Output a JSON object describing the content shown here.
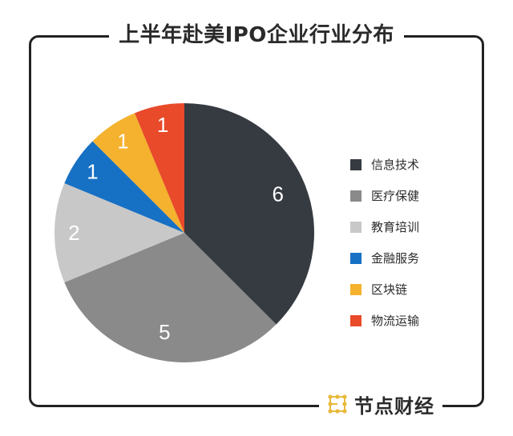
{
  "title": "上半年赴美IPO企业行业分布",
  "watermark": "节点财经",
  "footer": {
    "brand": "节点财经"
  },
  "legend": [
    {
      "label": "信息技术",
      "color": "#363b42"
    },
    {
      "label": "医疗保健",
      "color": "#8a8a8a"
    },
    {
      "label": "教育培训",
      "color": "#c8c8c8"
    },
    {
      "label": "金融服务",
      "color": "#1670c4"
    },
    {
      "label": "区块链",
      "color": "#f4b22e"
    },
    {
      "label": "物流运输",
      "color": "#e84a2a"
    }
  ],
  "chart_data": {
    "type": "pie",
    "title": "上半年赴美IPO企业行业分布",
    "categories": [
      "信息技术",
      "医疗保健",
      "教育培训",
      "金融服务",
      "区块链",
      "物流运输"
    ],
    "values": [
      6,
      5,
      2,
      1,
      1,
      1
    ],
    "colors": [
      "#363b42",
      "#8a8a8a",
      "#c8c8c8",
      "#1670c4",
      "#f4b22e",
      "#e84a2a"
    ],
    "start_angle": "12 o'clock, clockwise",
    "legend_position": "right",
    "data_labels": [
      "6",
      "5",
      "2",
      "1",
      "1",
      "1"
    ]
  }
}
